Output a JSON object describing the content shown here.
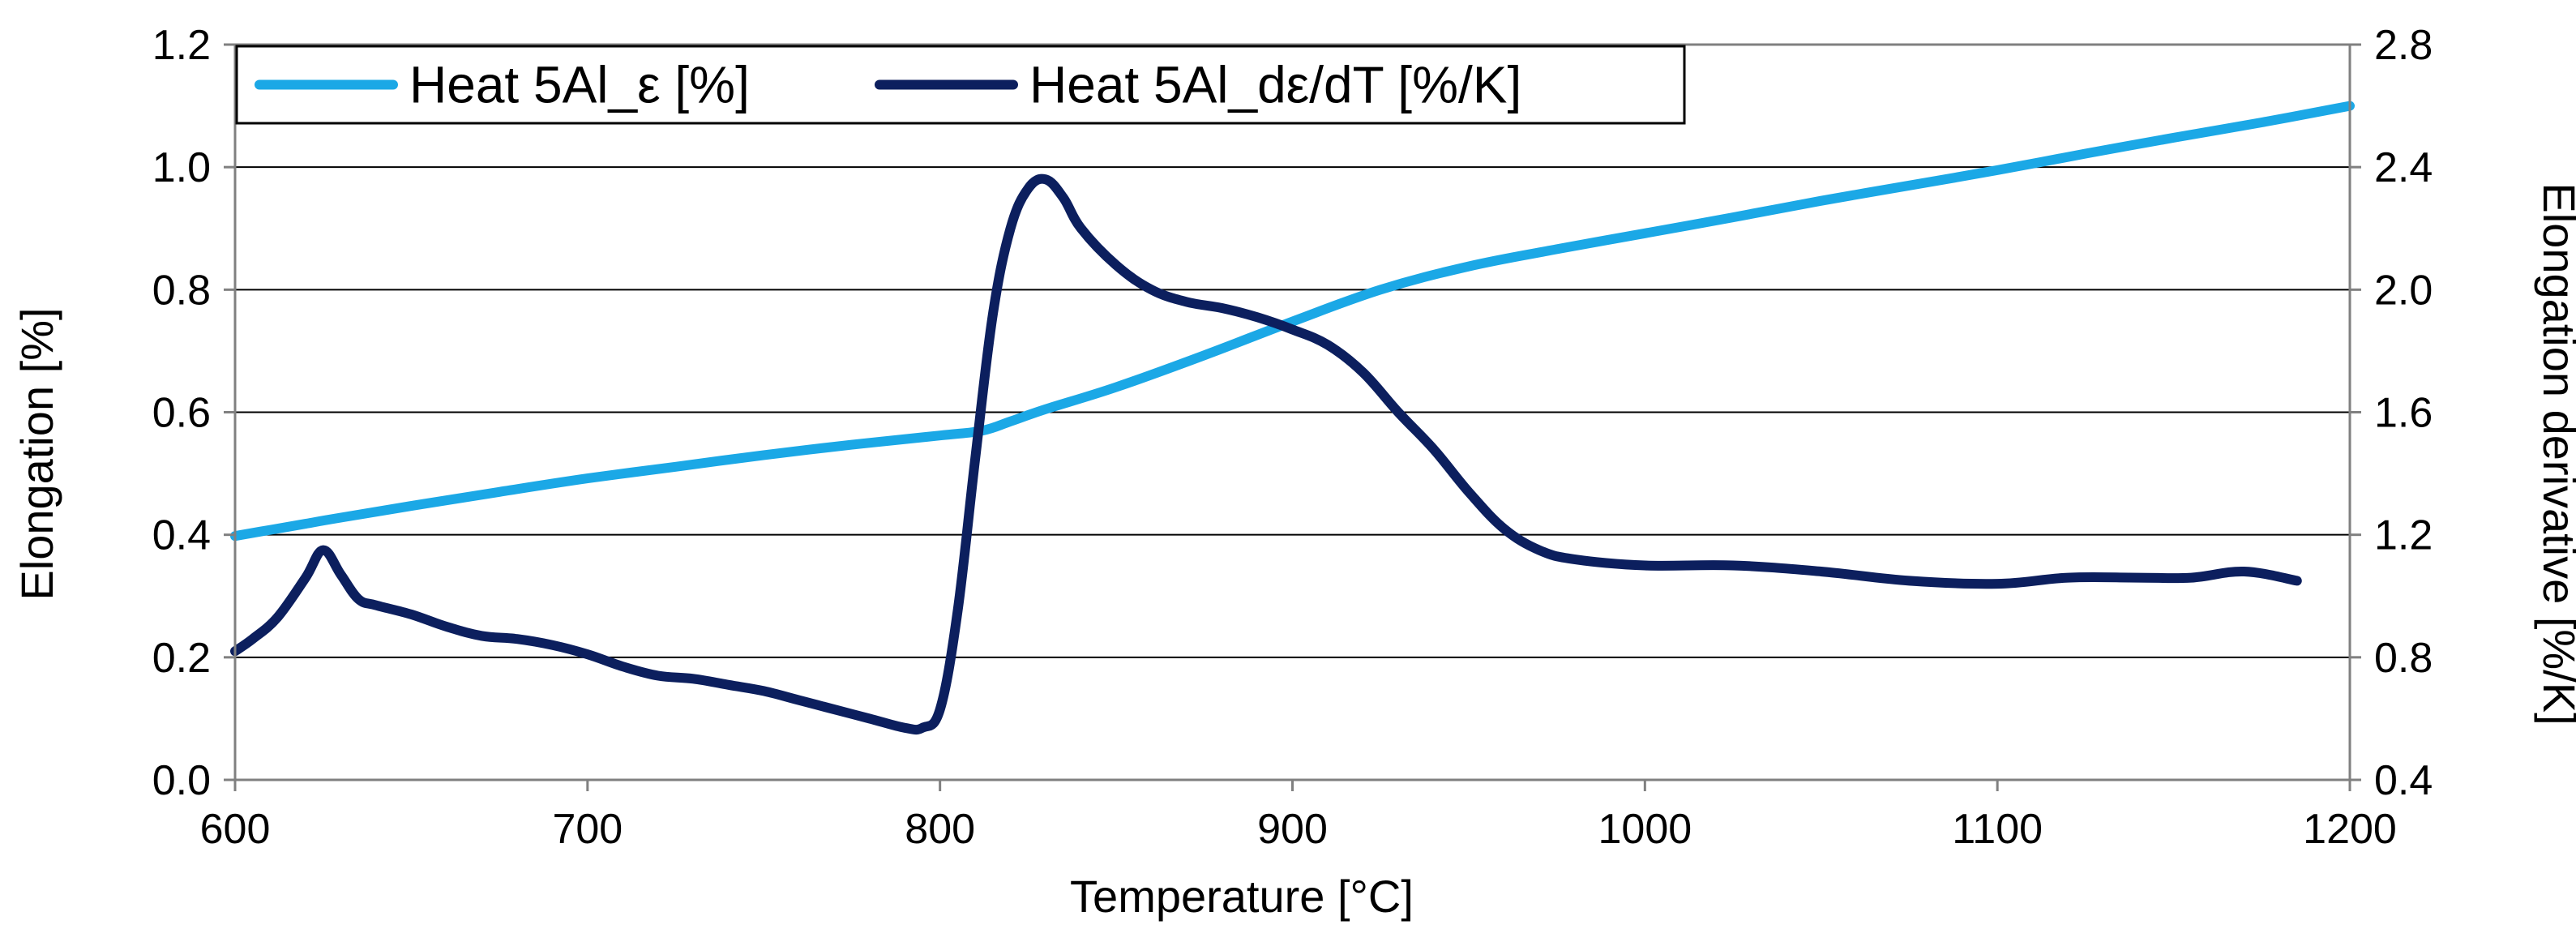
{
  "chart_data": {
    "type": "line",
    "title": "",
    "xlabel": "Temperature [°C]",
    "ylabel": "Elongation [%]",
    "y2label": "Elongation derivative [%/K]",
    "xlim": [
      600,
      1200
    ],
    "ylim": [
      0,
      1.2
    ],
    "y2lim": [
      0.4,
      2.8
    ],
    "xticks": [
      600,
      700,
      800,
      900,
      1000,
      1100,
      1200
    ],
    "yticks": [
      0.0,
      0.2,
      0.4,
      0.6,
      0.8,
      1.0,
      1.2
    ],
    "y2ticks": [
      0.4,
      0.8,
      1.2,
      1.6,
      2.0,
      2.4,
      2.8
    ],
    "xtick_labels": [
      "600",
      "700",
      "800",
      "900",
      "1000",
      "1100",
      "1200"
    ],
    "ytick_labels": [
      "0.0",
      "0.2",
      "0.4",
      "0.6",
      "0.8",
      "1.0",
      "1.2"
    ],
    "y2tick_labels": [
      "0.4",
      "0.8",
      "1.2",
      "1.6",
      "2.0",
      "2.4",
      "2.8"
    ],
    "grid": "horizontal",
    "legend_position": "top-left",
    "series": [
      {
        "name": "Heat 5Al_ε [%]",
        "axis": "left",
        "color": "#1ba8e6",
        "x": [
          600,
          610,
          620,
          630,
          650,
          675,
          700,
          725,
          750,
          775,
          800,
          812,
          820,
          830,
          850,
          875,
          900,
          925,
          950,
          975,
          1000,
          1025,
          1050,
          1075,
          1100,
          1125,
          1150,
          1175,
          1200
        ],
        "y": [
          0.398,
          0.408,
          0.418,
          0.428,
          0.447,
          0.47,
          0.492,
          0.511,
          0.53,
          0.547,
          0.562,
          0.57,
          0.585,
          0.605,
          0.641,
          0.693,
          0.748,
          0.8,
          0.838,
          0.866,
          0.892,
          0.918,
          0.945,
          0.97,
          0.995,
          1.022,
          1.048,
          1.073,
          1.1
        ]
      },
      {
        "name": "Heat 5Al_dε/dT [%/K]",
        "axis": "right",
        "color": "#0c1f5e",
        "x": [
          600,
          605,
          612,
          620,
          625,
          630,
          635,
          640,
          650,
          660,
          670,
          680,
          690,
          700,
          710,
          720,
          730,
          740,
          750,
          760,
          770,
          780,
          790,
          795,
          800,
          805,
          810,
          815,
          820,
          825,
          830,
          835,
          840,
          850,
          860,
          870,
          880,
          890,
          900,
          910,
          920,
          930,
          940,
          950,
          960,
          970,
          980,
          1000,
          1025,
          1050,
          1075,
          1100,
          1120,
          1140,
          1155,
          1170,
          1185
        ],
        "y": [
          0.82,
          0.86,
          0.93,
          1.06,
          1.15,
          1.07,
          0.99,
          0.97,
          0.94,
          0.9,
          0.87,
          0.86,
          0.84,
          0.81,
          0.77,
          0.74,
          0.73,
          0.71,
          0.69,
          0.66,
          0.63,
          0.6,
          0.57,
          0.57,
          0.63,
          0.95,
          1.45,
          1.92,
          2.2,
          2.33,
          2.36,
          2.3,
          2.2,
          2.08,
          2.0,
          1.96,
          1.94,
          1.91,
          1.87,
          1.82,
          1.73,
          1.6,
          1.48,
          1.34,
          1.22,
          1.15,
          1.12,
          1.1,
          1.1,
          1.08,
          1.05,
          1.04,
          1.06,
          1.06,
          1.06,
          1.08,
          1.05
        ]
      }
    ]
  }
}
